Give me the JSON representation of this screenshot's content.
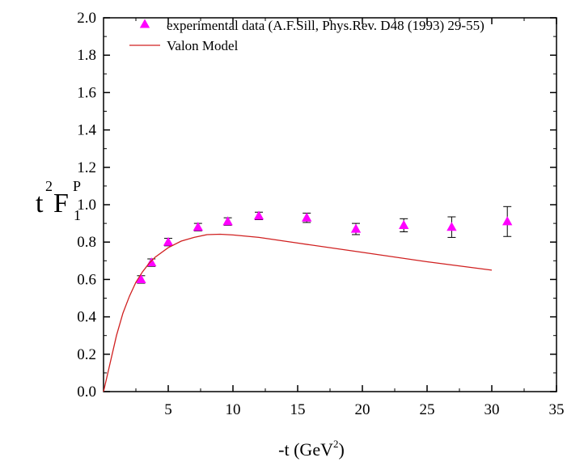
{
  "chart_data": {
    "type": "scatter",
    "xlabel": {
      "pre": "-t (GeV",
      "sup": "2",
      "post": ")"
    },
    "ylabel": {
      "pre_sup": "2",
      "base_t": "t",
      "base_f": "F",
      "sub": "1",
      "sup": "P"
    },
    "xlim": [
      0,
      35
    ],
    "ylim": [
      0.0,
      2.0
    ],
    "x_ticks": [
      5,
      10,
      15,
      20,
      25,
      30,
      35
    ],
    "x_tick_labels": [
      "5",
      "10",
      "15",
      "20",
      "25",
      "30",
      "35"
    ],
    "y_ticks": [
      0.0,
      0.2,
      0.4,
      0.6,
      0.8,
      1.0,
      1.2,
      1.4,
      1.6,
      1.8,
      2.0
    ],
    "y_tick_labels": [
      "0.0",
      "0.2",
      "0.4",
      "0.6",
      "0.8",
      "1.0",
      "1.2",
      "1.4",
      "1.6",
      "1.8",
      "2.0"
    ],
    "legend_position": "top-left",
    "series": [
      {
        "name": "experimental data (A.F.Sill, Phys.Rev. D48 (1993) 29-55)",
        "kind": "markers",
        "marker": "triangle",
        "color": "#ff00ff",
        "points": [
          {
            "x": 2.9,
            "y": 0.6,
            "err": 0.02
          },
          {
            "x": 3.7,
            "y": 0.69,
            "err": 0.02
          },
          {
            "x": 5.0,
            "y": 0.8,
            "err": 0.02
          },
          {
            "x": 7.3,
            "y": 0.88,
            "err": 0.02
          },
          {
            "x": 9.6,
            "y": 0.91,
            "err": 0.02
          },
          {
            "x": 12.0,
            "y": 0.94,
            "err": 0.02
          },
          {
            "x": 15.7,
            "y": 0.93,
            "err": 0.025
          },
          {
            "x": 19.5,
            "y": 0.87,
            "err": 0.03
          },
          {
            "x": 23.2,
            "y": 0.89,
            "err": 0.035
          },
          {
            "x": 26.9,
            "y": 0.88,
            "err": 0.055
          },
          {
            "x": 31.2,
            "y": 0.91,
            "err": 0.08
          }
        ]
      },
      {
        "name": "Valon Model",
        "kind": "line",
        "color": "#d02020",
        "points": [
          {
            "x": 0.0,
            "y": 0.0
          },
          {
            "x": 0.5,
            "y": 0.15
          },
          {
            "x": 1.0,
            "y": 0.3
          },
          {
            "x": 1.5,
            "y": 0.42
          },
          {
            "x": 2.0,
            "y": 0.51
          },
          {
            "x": 2.5,
            "y": 0.585
          },
          {
            "x": 3.0,
            "y": 0.64
          },
          {
            "x": 3.5,
            "y": 0.685
          },
          {
            "x": 4.0,
            "y": 0.72
          },
          {
            "x": 5.0,
            "y": 0.77
          },
          {
            "x": 6.0,
            "y": 0.805
          },
          {
            "x": 7.0,
            "y": 0.825
          },
          {
            "x": 8.0,
            "y": 0.84
          },
          {
            "x": 9.0,
            "y": 0.842
          },
          {
            "x": 10.0,
            "y": 0.838
          },
          {
            "x": 12.0,
            "y": 0.825
          },
          {
            "x": 15.0,
            "y": 0.795
          },
          {
            "x": 20.0,
            "y": 0.745
          },
          {
            "x": 25.0,
            "y": 0.695
          },
          {
            "x": 30.0,
            "y": 0.65
          }
        ]
      }
    ]
  }
}
